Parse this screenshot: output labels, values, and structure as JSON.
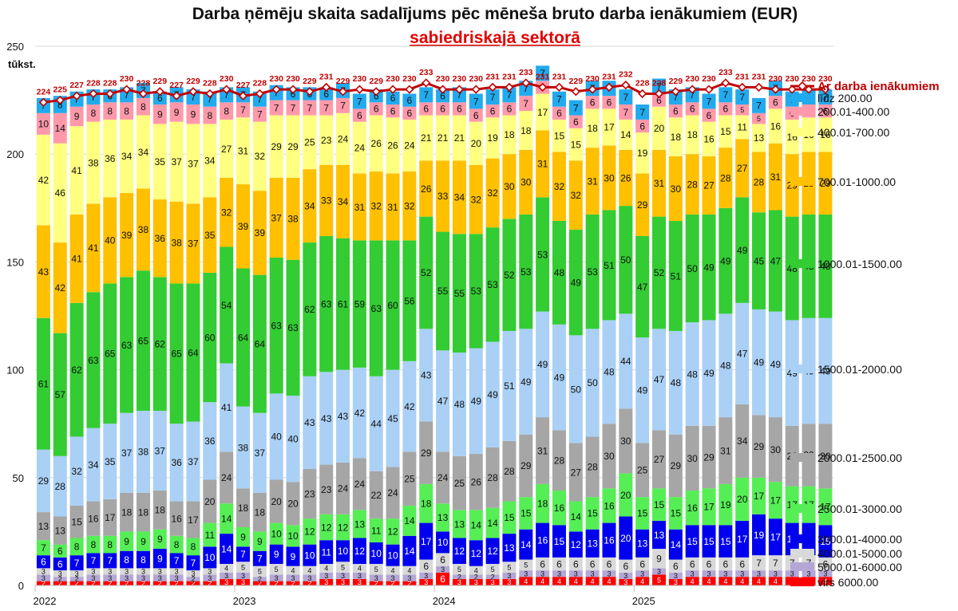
{
  "chart_data": {
    "type": "bar",
    "stacked": true,
    "title": "Darba ņēmēju skaita sadalījums pēc mēneša bruto darba ienākumiem (EUR)",
    "subtitle": "sabiedriskajā sektorā",
    "ylabel": "tūkst.",
    "ylim": [
      0,
      250
    ],
    "yticks": [
      0,
      50,
      100,
      150,
      200,
      250
    ],
    "year_labels": [
      {
        "label": "2022",
        "index": 0
      },
      {
        "label": "2023",
        "index": 12
      },
      {
        "label": "2024",
        "index": 24
      },
      {
        "label": "2025",
        "index": 36
      }
    ],
    "grid": true,
    "legend_position": "right",
    "series": [
      {
        "name": "virs 6000.00",
        "color": "#ff0000",
        "values": [
          2,
          2,
          2,
          2,
          2,
          2,
          2,
          2,
          2,
          2,
          2,
          3,
          3,
          2,
          2,
          2,
          2,
          3,
          3,
          3,
          2,
          2,
          2,
          3,
          6,
          3,
          3,
          3,
          3,
          4,
          4,
          4,
          4,
          4,
          4,
          3,
          4,
          5,
          3,
          4,
          4,
          4,
          4,
          4,
          4,
          4,
          4,
          4
        ]
      },
      {
        "name": "5000.01-6000.00",
        "color": "#b4a7d6",
        "values": [
          3,
          2,
          2,
          3,
          3,
          3,
          3,
          3,
          3,
          2,
          3,
          3,
          3,
          2,
          3,
          3,
          3,
          3,
          3,
          3,
          3,
          3,
          3,
          3,
          3,
          2,
          2,
          2,
          3,
          3,
          3,
          3,
          3,
          3,
          3,
          3,
          3,
          3,
          3,
          3,
          3,
          3,
          3,
          3,
          3,
          3,
          3,
          3
        ]
      },
      {
        "name": "4000.01-5000.00",
        "color": "#d9d9d9",
        "values": [
          3,
          3,
          3,
          3,
          3,
          3,
          3,
          3,
          3,
          3,
          3,
          4,
          5,
          5,
          5,
          4,
          4,
          4,
          5,
          4,
          5,
          4,
          4,
          6,
          6,
          5,
          4,
          5,
          5,
          5,
          6,
          6,
          6,
          6,
          6,
          6,
          6,
          9,
          6,
          6,
          6,
          6,
          6,
          7,
          7,
          7,
          7,
          6
        ]
      },
      {
        "name": "3000.01-4000.00",
        "color": "#0000ee",
        "values": [
          6,
          6,
          7,
          7,
          7,
          8,
          8,
          9,
          7,
          7,
          10,
          14,
          7,
          7,
          9,
          9,
          10,
          11,
          10,
          12,
          10,
          10,
          14,
          17,
          10,
          12,
          12,
          12,
          13,
          14,
          16,
          15,
          12,
          13,
          16,
          20,
          13,
          13,
          14,
          15,
          15,
          15,
          17,
          19,
          17,
          15,
          15,
          15
        ]
      },
      {
        "name": "2500.01-3000.00",
        "color": "#55ee55",
        "values": [
          7,
          6,
          8,
          8,
          8,
          9,
          9,
          9,
          8,
          8,
          11,
          14,
          9,
          9,
          10,
          10,
          12,
          12,
          12,
          13,
          11,
          12,
          14,
          18,
          13,
          13,
          14,
          14,
          15,
          15,
          18,
          16,
          14,
          15,
          16,
          20,
          15,
          15,
          15,
          16,
          17,
          19,
          20,
          17,
          17,
          17,
          17,
          17
        ]
      },
      {
        "name": "2000.01-2500.00",
        "color": "#a6a6a6",
        "values": [
          13,
          13,
          15,
          16,
          17,
          18,
          18,
          18,
          16,
          17,
          20,
          24,
          18,
          18,
          20,
          20,
          23,
          23,
          24,
          24,
          22,
          24,
          25,
          29,
          24,
          25,
          26,
          28,
          28,
          29,
          31,
          28,
          27,
          28,
          30,
          30,
          25,
          27,
          29,
          30,
          29,
          31,
          34,
          29,
          30,
          28,
          29,
          30
        ]
      },
      {
        "name": "1500.01-2000.00",
        "color": "#aad0f5",
        "values": [
          29,
          28,
          32,
          34,
          35,
          37,
          38,
          37,
          36,
          37,
          36,
          41,
          38,
          37,
          40,
          40,
          43,
          43,
          43,
          42,
          44,
          45,
          42,
          43,
          47,
          48,
          49,
          49,
          51,
          49,
          49,
          49,
          50,
          50,
          48,
          44,
          49,
          47,
          48,
          48,
          49,
          48,
          47,
          49,
          49,
          49,
          49,
          49
        ]
      },
      {
        "name": "1000.01-1500.00",
        "color": "#33cc33",
        "values": [
          61,
          57,
          62,
          63,
          65,
          63,
          65,
          62,
          65,
          64,
          60,
          54,
          64,
          64,
          63,
          63,
          62,
          63,
          61,
          59,
          63,
          60,
          56,
          52,
          55,
          55,
          53,
          53,
          52,
          53,
          53,
          48,
          49,
          53,
          51,
          50,
          47,
          52,
          51,
          50,
          49,
          49,
          49,
          45,
          47,
          48,
          48,
          48
        ]
      },
      {
        "name": "700.01-1000.00",
        "color": "#ffc000",
        "values": [
          43,
          42,
          41,
          41,
          40,
          39,
          38,
          36,
          38,
          37,
          35,
          32,
          39,
          39,
          37,
          38,
          34,
          33,
          34,
          31,
          32,
          31,
          32,
          26,
          33,
          34,
          32,
          32,
          30,
          30,
          31,
          32,
          32,
          31,
          30,
          26,
          29,
          31,
          30,
          28,
          27,
          28,
          27,
          28,
          31,
          29,
          29,
          29
        ]
      },
      {
        "name": "400.01-700.00",
        "color": "#ffff80",
        "values": [
          42,
          46,
          41,
          38,
          36,
          34,
          34,
          35,
          37,
          37,
          34,
          27,
          31,
          32,
          29,
          29,
          25,
          23,
          24,
          24,
          26,
          26,
          24,
          21,
          21,
          21,
          20,
          19,
          18,
          18,
          17,
          15,
          15,
          18,
          17,
          14,
          19,
          20,
          18,
          18,
          16,
          15,
          11,
          13,
          16,
          16,
          16,
          16
        ]
      },
      {
        "name": "200.01-400.00",
        "color": "#ff99aa",
        "values": [
          10,
          14,
          9,
          8,
          8,
          8,
          8,
          9,
          9,
          9,
          8,
          8,
          7,
          7,
          7,
          7,
          7,
          7,
          7,
          6,
          6,
          6,
          6,
          6,
          6,
          6,
          6,
          6,
          6,
          7,
          6,
          6,
          6,
          6,
          6,
          7,
          6,
          6,
          6,
          6,
          6,
          6,
          5,
          5,
          6,
          6,
          6,
          6
        ]
      },
      {
        "name": "līdz 200.00",
        "color": "#22aaee",
        "values": [
          7,
          8,
          7,
          7,
          6,
          7,
          7,
          6,
          7,
          7,
          7,
          7,
          7,
          7,
          7,
          6,
          6,
          6,
          7,
          7,
          6,
          6,
          6,
          7,
          6,
          7,
          7,
          7,
          7,
          7,
          7,
          7,
          7,
          7,
          7,
          7,
          7,
          7,
          7,
          7,
          7,
          7,
          7,
          7,
          7,
          7,
          7,
          7
        ]
      }
    ],
    "line": {
      "name": "Ar darba ienākumiem",
      "color": "#c00000",
      "values": [
        224,
        225,
        227,
        228,
        228,
        230,
        228,
        229,
        227,
        229,
        228,
        230,
        227,
        228,
        230,
        230,
        229,
        231,
        229,
        230,
        229,
        230,
        230,
        233,
        230,
        230,
        230,
        231,
        231,
        233,
        231,
        231,
        229,
        230,
        231,
        232,
        228,
        228,
        229,
        230,
        230,
        233,
        231,
        231,
        230,
        230,
        230,
        230
      ]
    }
  }
}
